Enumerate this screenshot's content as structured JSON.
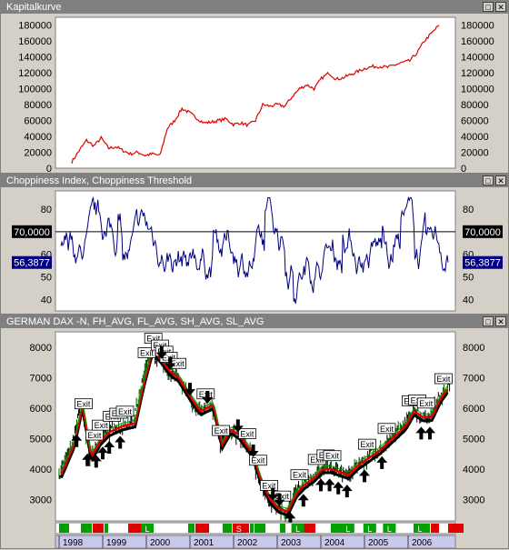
{
  "window_buttons": {
    "maximize": "□",
    "close": "✕"
  },
  "panels": {
    "equity": {
      "title": "Kapitalkurve"
    },
    "chop": {
      "title": "Choppiness Index, Choppiness Threshold"
    },
    "price": {
      "title": "GERMAN DAX -N, FH_AVG, FL_AVG, SH_AVG, SL_AVG"
    }
  },
  "chart_data": [
    {
      "type": "line",
      "title": "Kapitalkurve",
      "color": "#e00000",
      "ylim": [
        0,
        190000
      ],
      "yticks": [
        0,
        20000,
        40000,
        60000,
        80000,
        100000,
        120000,
        140000,
        160000,
        180000
      ],
      "x": [
        0,
        2,
        4,
        6,
        8,
        10,
        12,
        14,
        16,
        18,
        20,
        22,
        24,
        26,
        28,
        30,
        32,
        34,
        36,
        38,
        40,
        42,
        44,
        46,
        48,
        50,
        52,
        54,
        56,
        58,
        60,
        62,
        64,
        66,
        68,
        70,
        72,
        74,
        76,
        78,
        80,
        82,
        84,
        86,
        88,
        90,
        92,
        94,
        96,
        98,
        100
      ],
      "y": [
        8000,
        22000,
        35000,
        28000,
        38000,
        25000,
        27000,
        22000,
        18000,
        20000,
        16000,
        18000,
        16000,
        50000,
        60000,
        75000,
        70000,
        63000,
        57000,
        58000,
        60000,
        62000,
        55000,
        57000,
        54000,
        60000,
        80000,
        78000,
        80000,
        78000,
        90000,
        100000,
        105000,
        100000,
        113000,
        120000,
        112000,
        114000,
        118000,
        122000,
        126000,
        128000,
        128000,
        127000,
        130000,
        133000,
        135000,
        145000,
        160000,
        170000,
        180000
      ]
    },
    {
      "type": "line",
      "title": "Choppiness Index, Choppiness Threshold",
      "color": "#000080",
      "ylim": [
        35,
        88
      ],
      "yticks": [
        40,
        50,
        60,
        70,
        80
      ],
      "threshold": 70.0,
      "threshold_label": "70,0000",
      "last_label": "56,3877",
      "last_value": 56.3877
    },
    {
      "type": "candlestick",
      "title": "GERMAN DAX -N, FH_AVG, FL_AVG, SH_AVG, SL_AVG",
      "ylim": [
        2300,
        8500
      ],
      "yticks": [
        3000,
        4000,
        5000,
        6000,
        7000,
        8000
      ],
      "x_years": [
        "1998",
        "1999",
        "2000",
        "2001",
        "2002",
        "2003",
        "2004",
        "2005",
        "2006"
      ],
      "close_path": [
        [
          1998.0,
          3800
        ],
        [
          1998.3,
          4800
        ],
        [
          1998.5,
          6100
        ],
        [
          1998.7,
          4400
        ],
        [
          1998.9,
          4900
        ],
        [
          1999.1,
          5200
        ],
        [
          1999.4,
          5400
        ],
        [
          1999.7,
          5500
        ],
        [
          1999.9,
          6800
        ],
        [
          2000.1,
          7900
        ],
        [
          2000.3,
          7600
        ],
        [
          2000.5,
          7200
        ],
        [
          2000.7,
          7000
        ],
        [
          2001.0,
          6300
        ],
        [
          2001.2,
          5900
        ],
        [
          2001.5,
          6100
        ],
        [
          2001.7,
          4800
        ],
        [
          2001.9,
          5300
        ],
        [
          2002.1,
          5100
        ],
        [
          2002.4,
          4500
        ],
        [
          2002.6,
          3600
        ],
        [
          2002.8,
          3000
        ],
        [
          2003.0,
          2700
        ],
        [
          2003.2,
          2600
        ],
        [
          2003.4,
          3200
        ],
        [
          2003.6,
          3500
        ],
        [
          2003.8,
          3700
        ],
        [
          2004.0,
          4000
        ],
        [
          2004.2,
          4000
        ],
        [
          2004.4,
          3900
        ],
        [
          2004.6,
          3800
        ],
        [
          2004.8,
          4100
        ],
        [
          2005.0,
          4300
        ],
        [
          2005.3,
          4600
        ],
        [
          2005.6,
          5000
        ],
        [
          2005.9,
          5400
        ],
        [
          2006.1,
          5900
        ],
        [
          2006.3,
          5700
        ],
        [
          2006.5,
          5700
        ],
        [
          2006.7,
          6300
        ],
        [
          2006.9,
          6700
        ]
      ],
      "exit_label": "Exit"
    }
  ],
  "calendar": {
    "labels": [
      "1998",
      "1999",
      "2000",
      "2001",
      "2002",
      "2003",
      "2004",
      "2005",
      "2006"
    ],
    "signal_letters": [
      "L",
      "S",
      "L",
      "L",
      "L",
      "L",
      "L"
    ]
  }
}
